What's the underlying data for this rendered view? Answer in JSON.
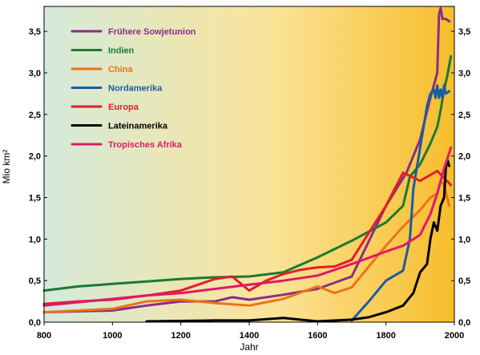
{
  "chart_data": {
    "type": "line",
    "xlabel": "Jahr",
    "ylabel": "Mio km²",
    "xlim": [
      800,
      2000
    ],
    "ylim": [
      0,
      3.8
    ],
    "x_ticks": [
      "800",
      "1000",
      "1200",
      "1400",
      "1600",
      "1800",
      "2000"
    ],
    "x_tick_values": [
      800,
      1000,
      1200,
      1400,
      1600,
      1800,
      2000
    ],
    "y_ticks": [
      "0,0",
      "0,5",
      "1,0",
      "1,5",
      "2,0",
      "2,5",
      "3,0",
      "3,5"
    ],
    "y_tick_values": [
      0,
      0.5,
      1.0,
      1.5,
      2.0,
      2.5,
      3.0,
      3.5
    ],
    "grid": false,
    "legend_position": "top-left",
    "background_gradient": [
      "#d4eadb",
      "#fbe49a",
      "#f7bd2a"
    ],
    "series": [
      {
        "name": "Frühere Sowjetunion",
        "color": "#8a2d86",
        "points": [
          [
            800,
            0.12
          ],
          [
            900,
            0.13
          ],
          [
            1000,
            0.14
          ],
          [
            1100,
            0.2
          ],
          [
            1200,
            0.25
          ],
          [
            1300,
            0.25
          ],
          [
            1350,
            0.3
          ],
          [
            1400,
            0.27
          ],
          [
            1500,
            0.33
          ],
          [
            1600,
            0.4
          ],
          [
            1700,
            0.55
          ],
          [
            1800,
            1.4
          ],
          [
            1860,
            1.8
          ],
          [
            1900,
            2.2
          ],
          [
            1930,
            2.7
          ],
          [
            1950,
            3.0
          ],
          [
            1955,
            3.7
          ],
          [
            1960,
            3.78
          ],
          [
            1965,
            3.65
          ],
          [
            1975,
            3.65
          ],
          [
            1985,
            3.62
          ]
        ]
      },
      {
        "name": "Indien",
        "color": "#1a7a33",
        "points": [
          [
            800,
            0.38
          ],
          [
            900,
            0.43
          ],
          [
            1000,
            0.46
          ],
          [
            1100,
            0.49
          ],
          [
            1200,
            0.52
          ],
          [
            1300,
            0.54
          ],
          [
            1400,
            0.55
          ],
          [
            1500,
            0.6
          ],
          [
            1600,
            0.78
          ],
          [
            1700,
            0.98
          ],
          [
            1800,
            1.2
          ],
          [
            1850,
            1.4
          ],
          [
            1870,
            1.75
          ],
          [
            1900,
            1.9
          ],
          [
            1930,
            2.15
          ],
          [
            1950,
            2.35
          ],
          [
            1960,
            2.55
          ],
          [
            1970,
            2.8
          ],
          [
            1980,
            2.98
          ],
          [
            1990,
            3.2
          ]
        ]
      },
      {
        "name": "China",
        "color": "#ec7319",
        "points": [
          [
            800,
            0.12
          ],
          [
            900,
            0.14
          ],
          [
            1000,
            0.16
          ],
          [
            1100,
            0.25
          ],
          [
            1200,
            0.27
          ],
          [
            1300,
            0.23
          ],
          [
            1400,
            0.2
          ],
          [
            1500,
            0.28
          ],
          [
            1600,
            0.43
          ],
          [
            1650,
            0.35
          ],
          [
            1700,
            0.42
          ],
          [
            1800,
            0.92
          ],
          [
            1850,
            1.15
          ],
          [
            1900,
            1.35
          ],
          [
            1930,
            1.5
          ],
          [
            1950,
            1.55
          ],
          [
            1960,
            1.7
          ],
          [
            1970,
            1.65
          ],
          [
            1985,
            1.4
          ]
        ]
      },
      {
        "name": "Nordamerika",
        "color": "#1a5ca3",
        "points": [
          [
            1700,
            0.02
          ],
          [
            1750,
            0.25
          ],
          [
            1800,
            0.5
          ],
          [
            1850,
            0.62
          ],
          [
            1870,
            1.0
          ],
          [
            1880,
            1.6
          ],
          [
            1900,
            2.1
          ],
          [
            1920,
            2.6
          ],
          [
            1930,
            2.75
          ],
          [
            1940,
            2.8
          ],
          [
            1945,
            2.7
          ],
          [
            1950,
            2.85
          ],
          [
            1955,
            2.7
          ],
          [
            1960,
            2.8
          ],
          [
            1965,
            2.7
          ],
          [
            1970,
            2.85
          ],
          [
            1975,
            2.75
          ],
          [
            1985,
            2.78
          ]
        ]
      },
      {
        "name": "Europa",
        "color": "#e01e2a",
        "points": [
          [
            800,
            0.22
          ],
          [
            900,
            0.25
          ],
          [
            1000,
            0.27
          ],
          [
            1100,
            0.32
          ],
          [
            1200,
            0.38
          ],
          [
            1300,
            0.52
          ],
          [
            1350,
            0.55
          ],
          [
            1400,
            0.38
          ],
          [
            1450,
            0.5
          ],
          [
            1500,
            0.58
          ],
          [
            1550,
            0.63
          ],
          [
            1600,
            0.66
          ],
          [
            1650,
            0.67
          ],
          [
            1700,
            0.75
          ],
          [
            1800,
            1.4
          ],
          [
            1850,
            1.8
          ],
          [
            1900,
            1.7
          ],
          [
            1950,
            1.82
          ],
          [
            1990,
            1.65
          ]
        ]
      },
      {
        "name": "Lateinamerika",
        "color": "#000000",
        "points": [
          [
            1100,
            0.01
          ],
          [
            1300,
            0.02
          ],
          [
            1400,
            0.02
          ],
          [
            1500,
            0.05
          ],
          [
            1600,
            0.01
          ],
          [
            1700,
            0.03
          ],
          [
            1750,
            0.06
          ],
          [
            1800,
            0.12
          ],
          [
            1850,
            0.2
          ],
          [
            1870,
            0.3
          ],
          [
            1880,
            0.35
          ],
          [
            1900,
            0.6
          ],
          [
            1920,
            0.7
          ],
          [
            1930,
            1.0
          ],
          [
            1940,
            1.2
          ],
          [
            1950,
            1.1
          ],
          [
            1960,
            1.4
          ],
          [
            1970,
            1.5
          ],
          [
            1975,
            1.85
          ],
          [
            1980,
            1.95
          ],
          [
            1985,
            1.88
          ]
        ]
      },
      {
        "name": "Tropisches Afrika",
        "color": "#e0196a",
        "points": [
          [
            800,
            0.2
          ],
          [
            900,
            0.24
          ],
          [
            1000,
            0.28
          ],
          [
            1100,
            0.32
          ],
          [
            1200,
            0.35
          ],
          [
            1300,
            0.4
          ],
          [
            1400,
            0.45
          ],
          [
            1500,
            0.5
          ],
          [
            1600,
            0.56
          ],
          [
            1700,
            0.7
          ],
          [
            1800,
            0.85
          ],
          [
            1850,
            0.92
          ],
          [
            1900,
            1.05
          ],
          [
            1930,
            1.3
          ],
          [
            1950,
            1.55
          ],
          [
            1970,
            1.85
          ],
          [
            1990,
            2.1
          ]
        ]
      }
    ]
  }
}
